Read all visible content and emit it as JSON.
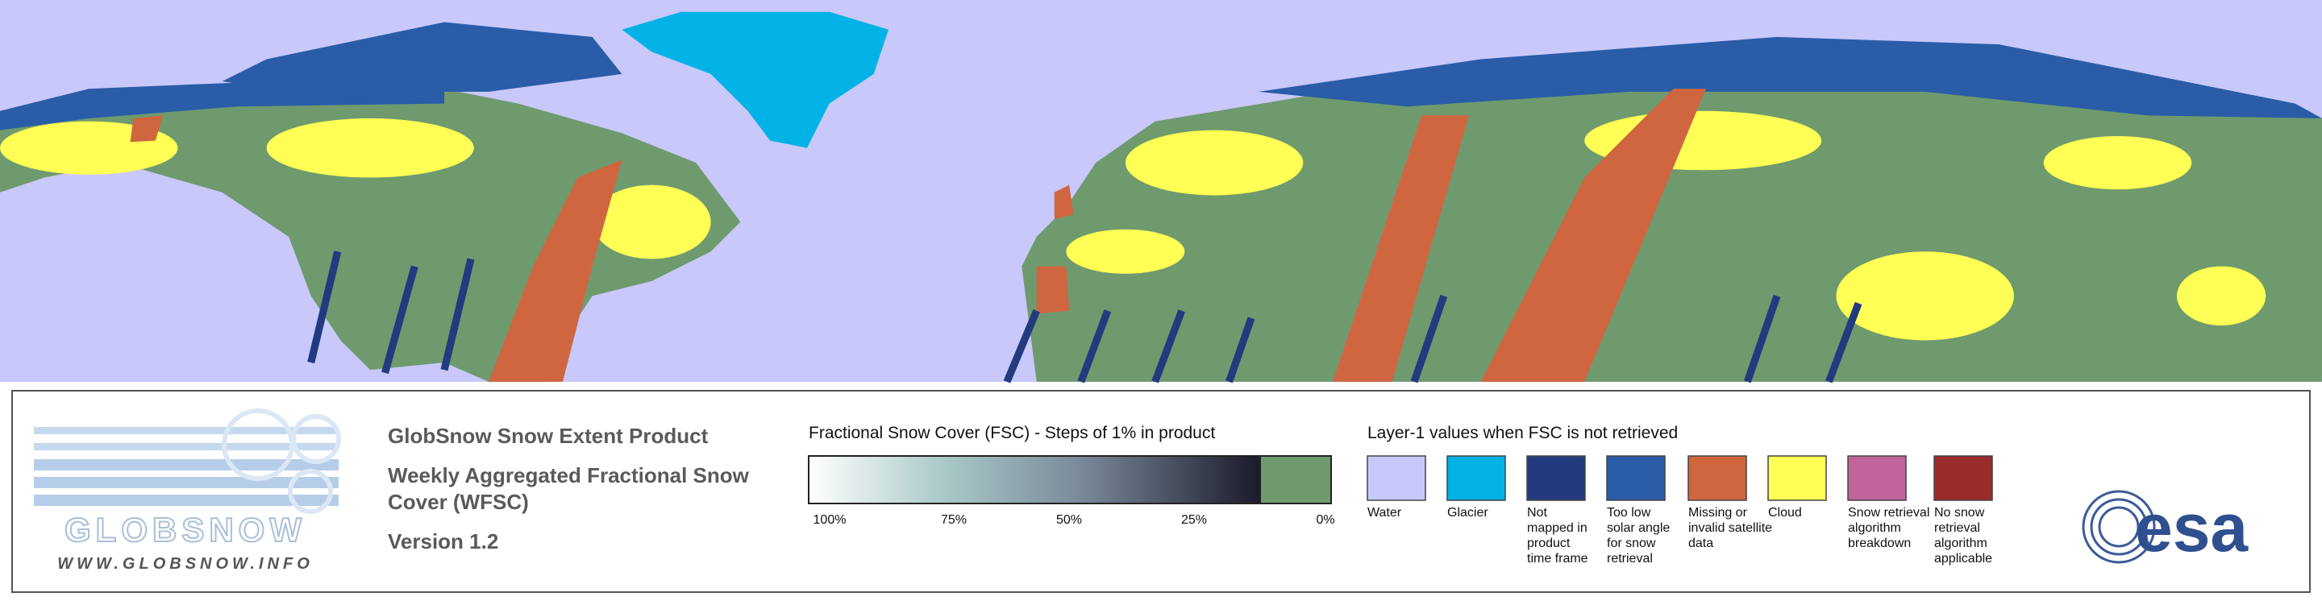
{
  "header": {
    "product": "GlobSnow Snow Extent Product",
    "subtitle_lines": [
      "Weekly Aggregated Fractional Snow",
      "Cover (WFSC)"
    ],
    "version": "Version 1.2"
  },
  "logo": {
    "name": "GLOBSNOW",
    "url": "WWW.GLOBSNOW.INFO"
  },
  "fsc_legend": {
    "title": "Fractional Snow Cover (FSC) - Steps of 1% in product",
    "ticks": [
      "100%",
      "75%",
      "50%",
      "25%",
      "0%"
    ]
  },
  "layer1_legend": {
    "title": "Layer-1 values when FSC is not retrieved",
    "items": [
      {
        "label_lines": [
          "Water"
        ],
        "color": "#c8c8fa"
      },
      {
        "label_lines": [
          "Glacier"
        ],
        "color": "#00b2e6"
      },
      {
        "label_lines": [
          "Not",
          "mapped in",
          "product",
          "time frame"
        ],
        "color": "#233a7e"
      },
      {
        "label_lines": [
          "Too low",
          "solar angle",
          "for snow",
          "retrieval"
        ],
        "color": "#2a5ca8"
      },
      {
        "label_lines": [
          "Missing or",
          "invalid satellite",
          "data"
        ],
        "color": "#cf6640"
      },
      {
        "label_lines": [
          "Cloud"
        ],
        "color": "#ffff55"
      },
      {
        "label_lines": [
          "Snow retrieval",
          "algorithm",
          "breakdown"
        ],
        "color": "#c0649b"
      },
      {
        "label_lines": [
          "No snow",
          "retrieval",
          "algorithm",
          "applicable"
        ],
        "color": "#992b2b"
      }
    ]
  },
  "agency": "esa"
}
